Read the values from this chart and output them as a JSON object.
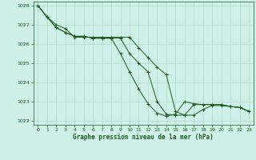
{
  "title": "Graphe pression niveau de la mer (hPa)",
  "background_color": "#cef0e8",
  "grid_color": "#b0d8cc",
  "line_color": "#1a5c1a",
  "xlim": [
    -0.5,
    23.5
  ],
  "ylim": [
    1021.8,
    1028.2
  ],
  "yticks": [
    1022,
    1023,
    1024,
    1025,
    1026,
    1027,
    1028
  ],
  "xticks": [
    0,
    1,
    2,
    3,
    4,
    5,
    6,
    7,
    8,
    9,
    10,
    11,
    12,
    13,
    14,
    15,
    16,
    17,
    18,
    19,
    20,
    21,
    22,
    23
  ],
  "series": [
    {
      "x": [
        0,
        1,
        2,
        3,
        4,
        5,
        6,
        7,
        8,
        9,
        10,
        11,
        12,
        13,
        14,
        15,
        16,
        17,
        18,
        19,
        20,
        21,
        22,
        23
      ],
      "y": [
        1028.0,
        1027.4,
        1027.0,
        1026.8,
        1026.35,
        1026.35,
        1026.35,
        1026.35,
        1026.35,
        1026.35,
        1026.35,
        1025.8,
        1025.3,
        1024.8,
        1024.4,
        1022.5,
        1022.3,
        1022.3,
        1022.6,
        1022.8,
        1022.8,
        1022.75,
        1022.7,
        1022.5
      ]
    },
    {
      "x": [
        0,
        1,
        2,
        3,
        4,
        5,
        6,
        7,
        8,
        9,
        10,
        11,
        12,
        13,
        14,
        15,
        16,
        17,
        18,
        19,
        20,
        21,
        22,
        23
      ],
      "y": [
        1028.0,
        1027.4,
        1026.85,
        1026.6,
        1026.4,
        1026.4,
        1026.3,
        1026.3,
        1026.3,
        1026.3,
        1025.5,
        1025.0,
        1024.55,
        1023.0,
        1022.35,
        1022.3,
        1022.3,
        1022.85,
        1022.85,
        1022.85,
        1022.85,
        1022.75,
        1022.7,
        1022.5
      ]
    },
    {
      "x": [
        0,
        1,
        2,
        3,
        4,
        5,
        6,
        7,
        8,
        9,
        10,
        11,
        12,
        13,
        14,
        15,
        16,
        17,
        18,
        19,
        20,
        21,
        22,
        23
      ],
      "y": [
        1028.0,
        1027.4,
        1026.85,
        1026.6,
        1026.4,
        1026.4,
        1026.3,
        1026.3,
        1026.3,
        1025.5,
        1024.55,
        1023.65,
        1022.9,
        1022.4,
        1022.25,
        1022.35,
        1023.0,
        1022.9,
        1022.85,
        1022.85,
        1022.85,
        1022.75,
        1022.7,
        1022.5
      ]
    }
  ]
}
